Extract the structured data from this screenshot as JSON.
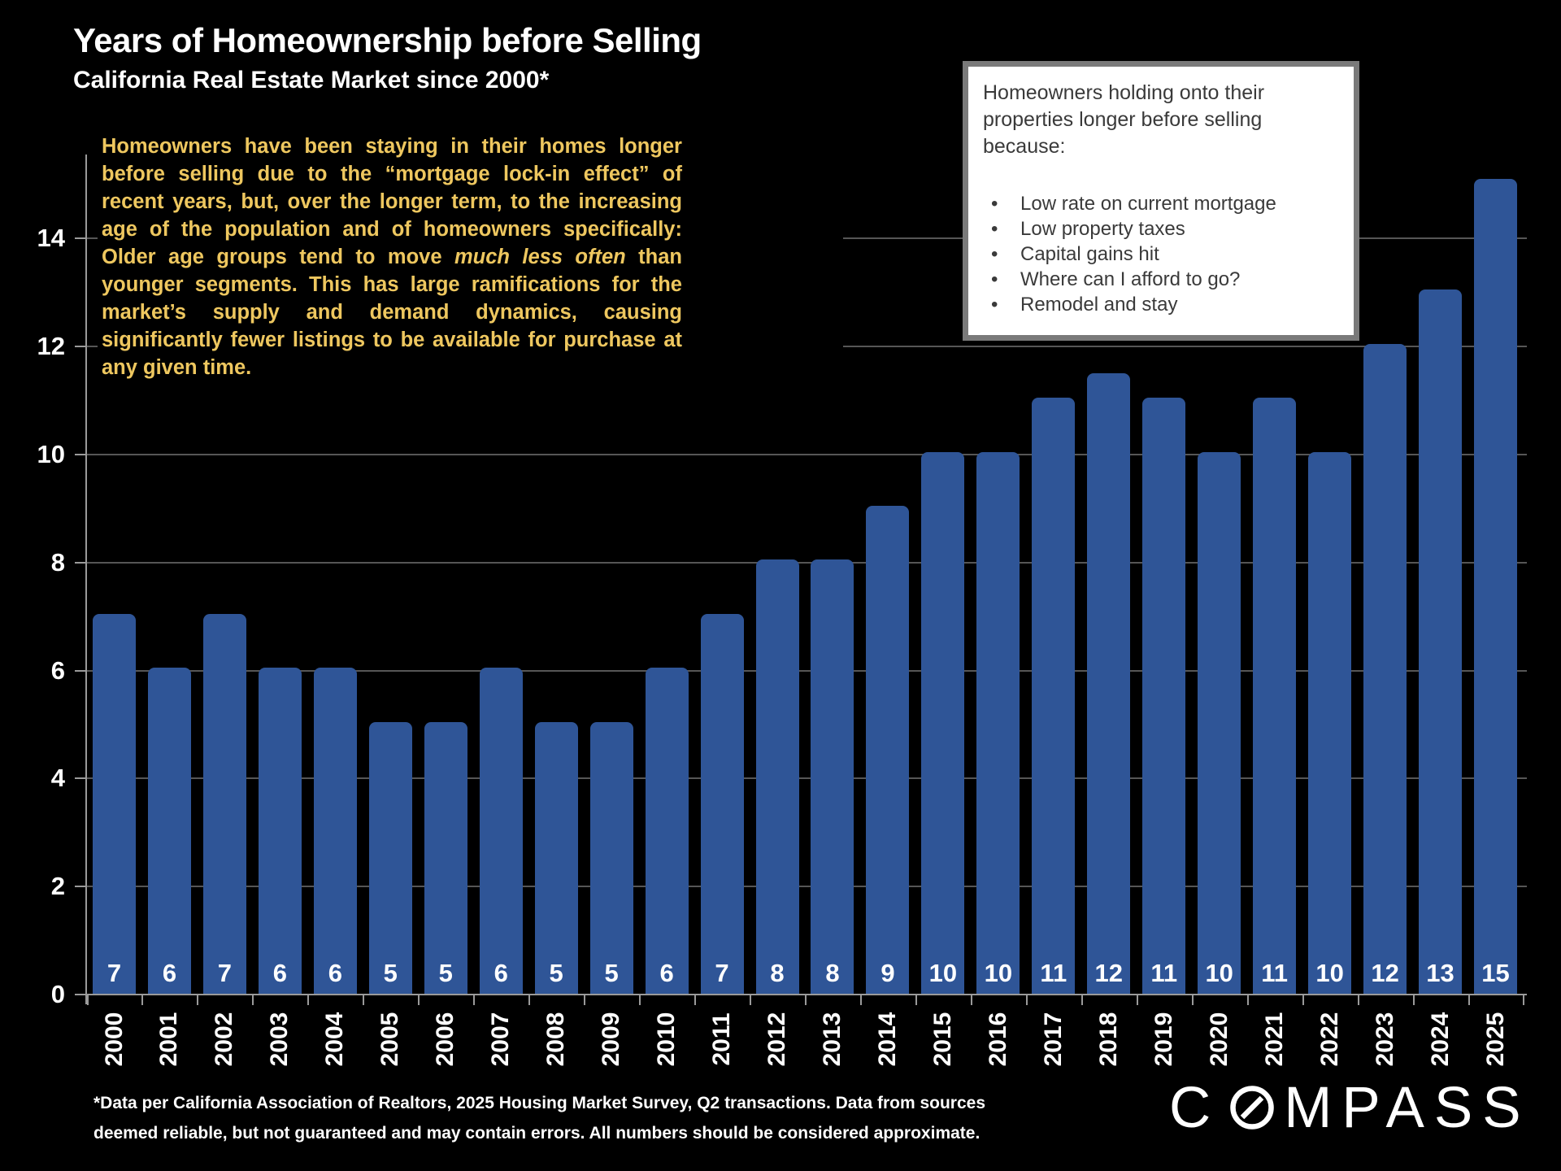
{
  "slide": {
    "title": "Years of Homeownership before Selling",
    "subtitle": "California Real Estate Market since 2000*",
    "background_color": "#000000"
  },
  "commentary": {
    "before": "Homeowners have been staying in their homes longer before selling due to the “mortgage lock-in effect” of recent years, but, over the longer term, to the increasing age of the population and of homeowners specifically:  Older age groups tend to move ",
    "italic": "much less often",
    "after": " than younger segments.  This has large ramifications for the market’s supply and demand dynamics, causing significantly fewer listings to be available for purchase at any given time.",
    "text_color": "#eec75f"
  },
  "callout": {
    "heading": "Homeowners holding onto their properties longer before selling because:",
    "bullets": [
      "Low rate on current mortgage",
      "Low property taxes",
      "Capital gains hit",
      "Where can I afford to go?",
      "Remodel and stay"
    ],
    "border_color": "#7a7a7a",
    "background": "#ffffff",
    "text_color": "#3a3a3a"
  },
  "chart_data": {
    "type": "bar",
    "title": "Years of Homeownership before Selling",
    "xlabel": "",
    "ylabel": "",
    "categories": [
      "2000",
      "2001",
      "2002",
      "2003",
      "2004",
      "2005",
      "2006",
      "2007",
      "2008",
      "2009",
      "2010",
      "2011",
      "2012",
      "2013",
      "2014",
      "2015",
      "2016",
      "2017",
      "2018",
      "2019",
      "2020",
      "2021",
      "2022",
      "2023",
      "2024",
      "2025"
    ],
    "values": [
      7,
      6,
      7,
      6,
      6,
      5,
      5,
      6,
      5,
      5,
      6,
      7,
      8,
      8,
      9,
      10,
      10,
      11,
      12,
      11,
      10,
      11,
      10,
      12,
      13,
      15
    ],
    "display_heights": [
      7.05,
      6.05,
      7.05,
      6.05,
      6.05,
      5.05,
      5.05,
      6.05,
      5.05,
      5.05,
      6.05,
      7.05,
      8.05,
      8.05,
      9.05,
      10.05,
      10.05,
      11.05,
      11.5,
      11.05,
      10.05,
      11.05,
      10.05,
      12.05,
      13.05,
      15.1
    ],
    "y_ticks": [
      0,
      2,
      4,
      6,
      8,
      10,
      12,
      14
    ],
    "ylim": [
      0,
      15.5
    ],
    "grid": true,
    "legend": "none",
    "bar_color": "#2f5597",
    "gridline_color": "#565656",
    "axis_color": "#9a9a9a",
    "tick_label_color": "#ffffff",
    "value_label_color": "#ffffff"
  },
  "footnote": "*Data per California Association of Realtors, 2025 Housing Market Survey, Q2 transactions. Data from sources\ndeemed reliable, but not guaranteed and may contain errors. All numbers should be considered approximate.",
  "logo": {
    "name": "COMPASS",
    "before_o": "C",
    "after_o": "MPASS"
  }
}
